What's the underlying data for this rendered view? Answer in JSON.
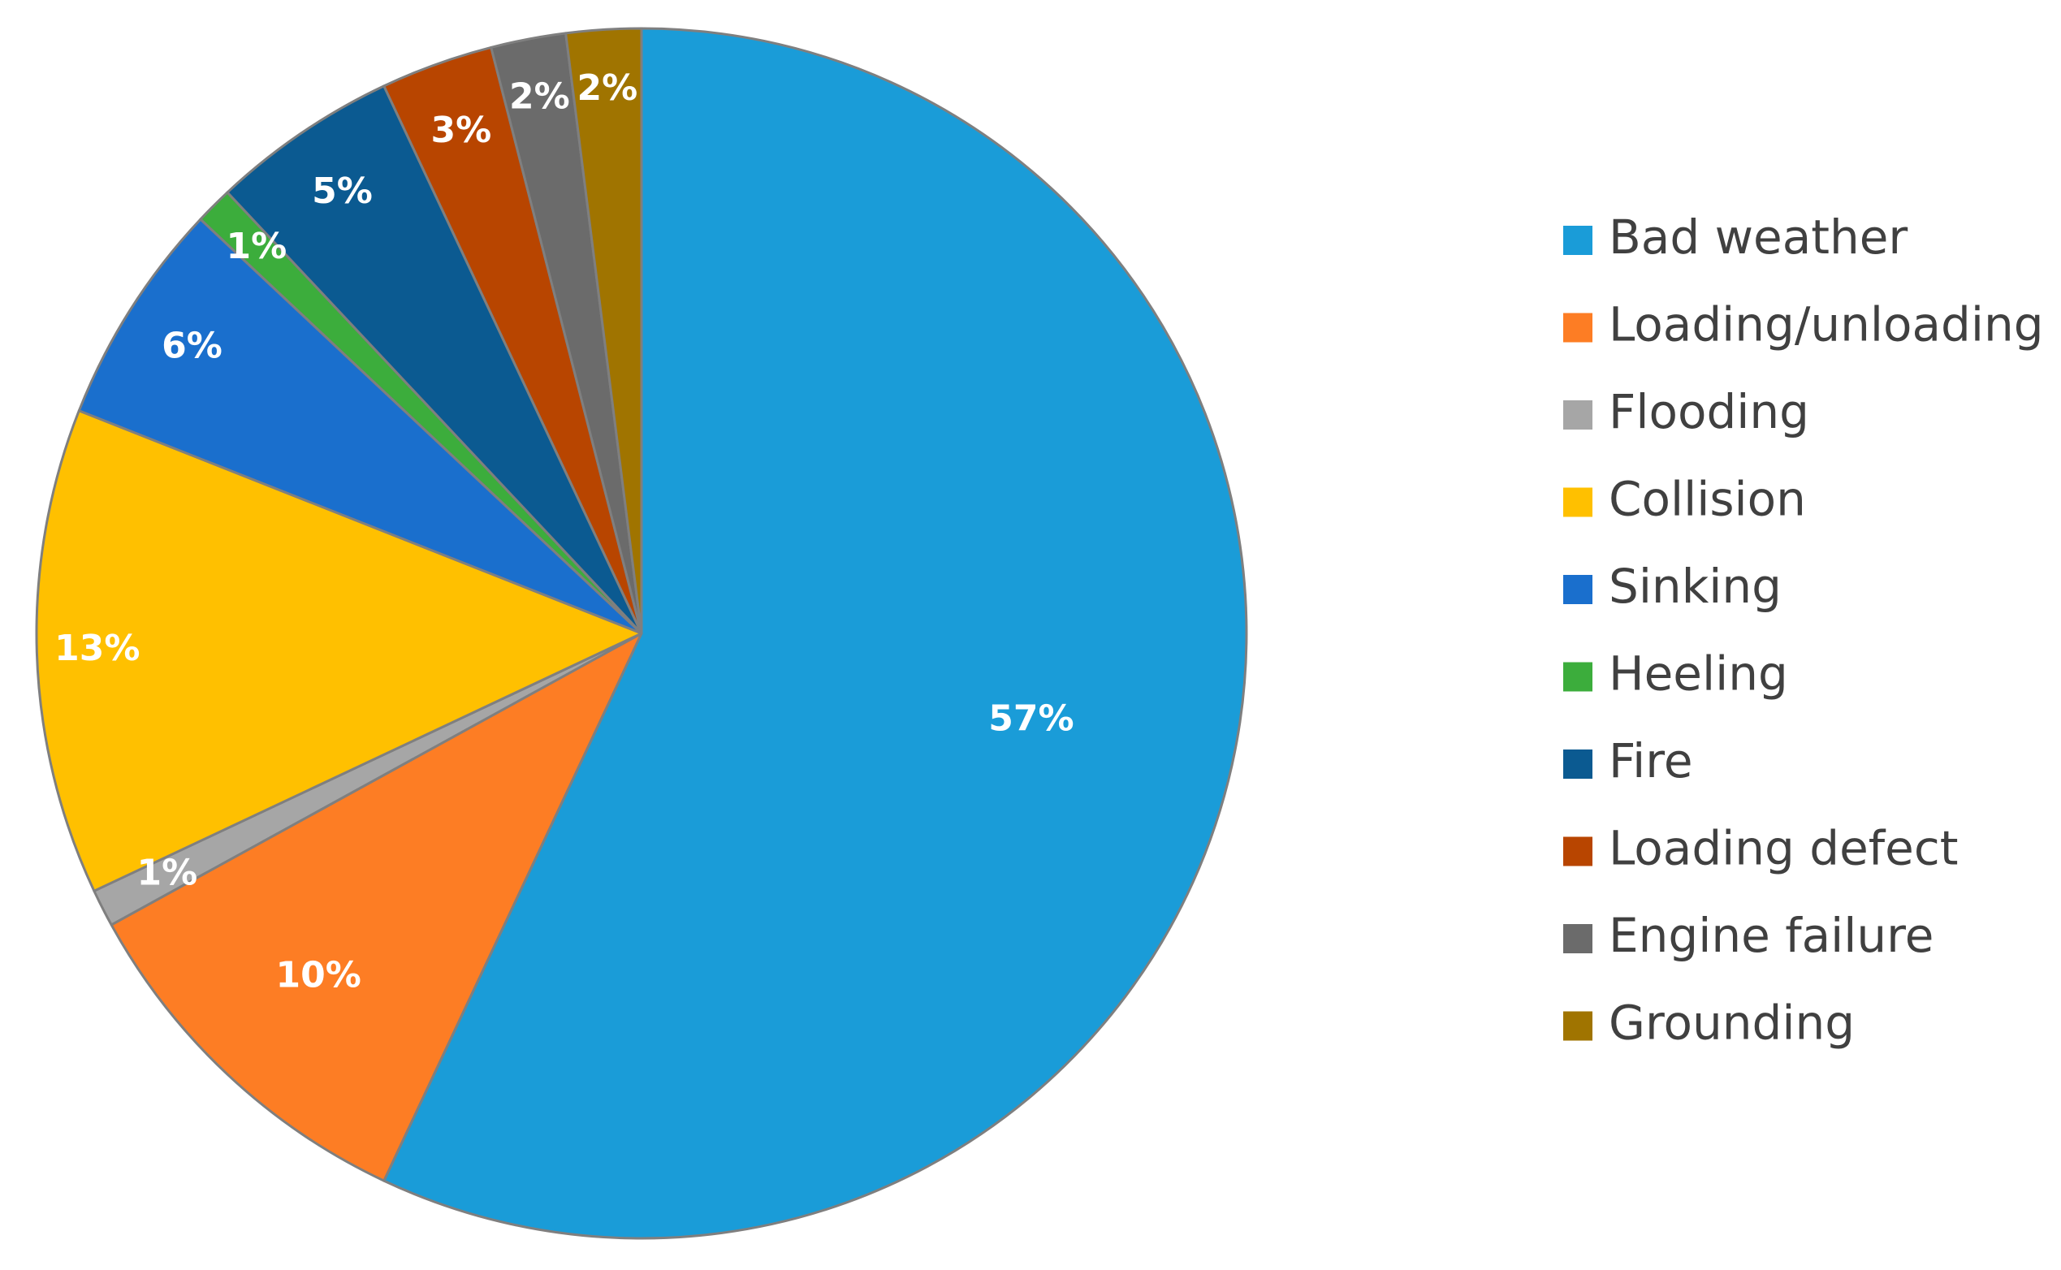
{
  "chart_data": {
    "type": "pie",
    "categories": [
      "Bad weather",
      "Loading/unloading",
      "Flooding",
      "Collision",
      "Sinking",
      "Heeling",
      "Fire",
      "Loading defect",
      "Engine failure",
      "Grounding"
    ],
    "values": [
      57,
      10,
      1,
      13,
      6,
      1,
      5,
      3,
      2,
      2
    ],
    "data_labels": [
      "57%",
      "10%",
      "1%",
      "13%",
      "6%",
      "1%",
      "5%",
      "3%",
      "2%",
      "2%"
    ],
    "colors": [
      "#1a9cd8",
      "#fd7d24",
      "#a6a6a6",
      "#ffc000",
      "#1a6fcd",
      "#3cad3c",
      "#0b5a91",
      "#b84500",
      "#6b6b6b",
      "#a07400"
    ],
    "start": "top",
    "direction": "clockwise",
    "title": "",
    "legend_position": "right"
  }
}
